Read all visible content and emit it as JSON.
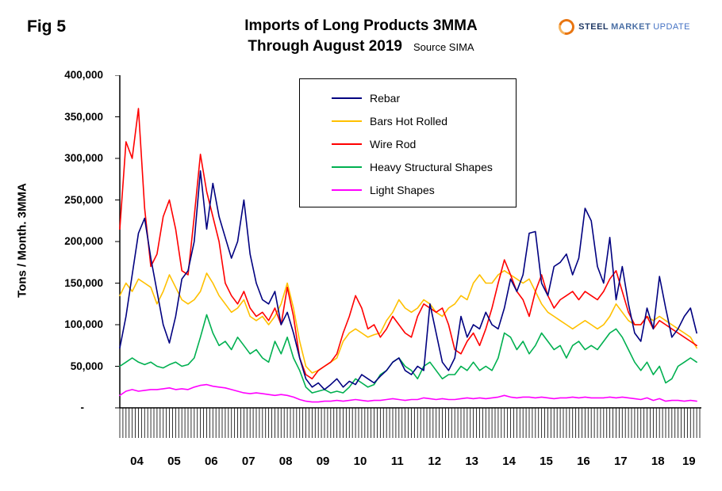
{
  "figure": {
    "label": "Fig 5"
  },
  "header": {
    "title_line1": "Imports of Long Products 3MMA",
    "title_line2": "Through August 2019",
    "source": "Source SIMA"
  },
  "logo": {
    "word1": "STEEL",
    "word2": "MARKET",
    "word3": "UPDATE",
    "icon": "globe-swoosh-icon",
    "accent": "#E87511",
    "navy": "#1F3864"
  },
  "y_axis": {
    "title": "Tons / Month. 3MMA",
    "tick_labels": [
      "400,000",
      "350,000",
      "300,000",
      "250,000",
      "200,000",
      "150,000",
      "100,000",
      "50,000",
      "-"
    ]
  },
  "x_axis": {
    "year_labels": [
      "04",
      "05",
      "06",
      "07",
      "08",
      "09",
      "10",
      "11",
      "12",
      "13",
      "14",
      "15",
      "16",
      "17",
      "18",
      "19"
    ]
  },
  "chart_data": {
    "type": "line",
    "title": "Imports of Long Products 3MMA Through August 2019",
    "subtitle": "Source SIMA",
    "xlabel": "",
    "ylabel": "Tons / Month. 3MMA",
    "ylim": [
      0,
      400000
    ],
    "y_tick_step": 50000,
    "grid": false,
    "legend_position": "top-center-inside",
    "x_start": "2004-01",
    "x_end": "2019-08",
    "x_month_step": 2,
    "x_note": "values estimated from plot at 2-month intervals, Jan 2004 - Jul/Aug 2019",
    "series": [
      {
        "name": "Rebar",
        "color": "#000080",
        "values": [
          72000,
          110000,
          160000,
          210000,
          228000,
          180000,
          140000,
          100000,
          78000,
          110000,
          155000,
          165000,
          200000,
          285000,
          215000,
          270000,
          230000,
          205000,
          180000,
          200000,
          250000,
          185000,
          150000,
          130000,
          125000,
          140000,
          100000,
          115000,
          90000,
          60000,
          35000,
          25000,
          30000,
          22000,
          28000,
          35000,
          25000,
          32000,
          28000,
          40000,
          35000,
          30000,
          38000,
          45000,
          55000,
          60000,
          45000,
          40000,
          50000,
          45000,
          125000,
          90000,
          55000,
          45000,
          60000,
          110000,
          85000,
          100000,
          95000,
          115000,
          100000,
          95000,
          120000,
          155000,
          140000,
          160000,
          210000,
          212000,
          150000,
          135000,
          170000,
          175000,
          185000,
          160000,
          180000,
          240000,
          225000,
          170000,
          150000,
          205000,
          130000,
          170000,
          125000,
          90000,
          80000,
          120000,
          95000,
          158000,
          120000,
          85000,
          95000,
          110000,
          120000,
          90000
        ]
      },
      {
        "name": "Bars Hot Rolled",
        "color": "#FFC000",
        "values": [
          135000,
          150000,
          140000,
          155000,
          150000,
          145000,
          125000,
          140000,
          160000,
          145000,
          130000,
          125000,
          130000,
          140000,
          162000,
          150000,
          135000,
          125000,
          115000,
          120000,
          130000,
          110000,
          105000,
          110000,
          100000,
          110000,
          125000,
          150000,
          120000,
          80000,
          50000,
          42000,
          45000,
          50000,
          55000,
          60000,
          80000,
          90000,
          95000,
          90000,
          85000,
          88000,
          90000,
          105000,
          115000,
          130000,
          120000,
          115000,
          120000,
          130000,
          125000,
          115000,
          110000,
          120000,
          125000,
          135000,
          130000,
          150000,
          160000,
          150000,
          150000,
          160000,
          165000,
          160000,
          155000,
          150000,
          155000,
          140000,
          125000,
          115000,
          110000,
          105000,
          100000,
          95000,
          100000,
          105000,
          100000,
          95000,
          100000,
          110000,
          125000,
          115000,
          105000,
          100000,
          100000,
          110000,
          105000,
          110000,
          105000,
          100000,
          95000,
          90000,
          85000,
          72000
        ]
      },
      {
        "name": "Wire Rod",
        "color": "#FF0000",
        "values": [
          215000,
          320000,
          300000,
          360000,
          240000,
          170000,
          185000,
          230000,
          250000,
          215000,
          165000,
          160000,
          230000,
          305000,
          260000,
          230000,
          200000,
          150000,
          135000,
          125000,
          140000,
          120000,
          110000,
          115000,
          105000,
          120000,
          100000,
          145000,
          110000,
          60000,
          40000,
          35000,
          45000,
          50000,
          55000,
          65000,
          90000,
          110000,
          135000,
          120000,
          95000,
          100000,
          85000,
          95000,
          110000,
          100000,
          90000,
          85000,
          110000,
          125000,
          120000,
          115000,
          120000,
          100000,
          70000,
          65000,
          80000,
          90000,
          75000,
          95000,
          120000,
          150000,
          178000,
          160000,
          140000,
          130000,
          110000,
          140000,
          160000,
          135000,
          120000,
          130000,
          135000,
          140000,
          130000,
          140000,
          135000,
          130000,
          140000,
          155000,
          165000,
          140000,
          115000,
          100000,
          100000,
          110000,
          95000,
          105000,
          100000,
          95000,
          90000,
          85000,
          80000,
          75000
        ]
      },
      {
        "name": "Heavy Structural Shapes",
        "color": "#00B050",
        "values": [
          50000,
          55000,
          60000,
          55000,
          52000,
          55000,
          50000,
          48000,
          52000,
          55000,
          50000,
          52000,
          60000,
          85000,
          112000,
          90000,
          75000,
          80000,
          70000,
          85000,
          75000,
          65000,
          70000,
          60000,
          55000,
          80000,
          65000,
          85000,
          60000,
          45000,
          25000,
          18000,
          20000,
          22000,
          18000,
          20000,
          18000,
          25000,
          35000,
          30000,
          25000,
          28000,
          40000,
          45000,
          55000,
          60000,
          50000,
          45000,
          35000,
          50000,
          55000,
          45000,
          35000,
          40000,
          40000,
          50000,
          45000,
          55000,
          45000,
          50000,
          45000,
          60000,
          90000,
          85000,
          70000,
          80000,
          65000,
          75000,
          90000,
          80000,
          70000,
          75000,
          60000,
          75000,
          80000,
          70000,
          75000,
          70000,
          80000,
          90000,
          95000,
          85000,
          70000,
          55000,
          45000,
          55000,
          40000,
          50000,
          30000,
          35000,
          50000,
          55000,
          60000,
          55000
        ]
      },
      {
        "name": "Light Shapes",
        "color": "#FF00FF",
        "values": [
          15000,
          20000,
          22000,
          20000,
          21000,
          22000,
          22000,
          23000,
          24000,
          22000,
          23000,
          22000,
          25000,
          27000,
          28000,
          26000,
          25000,
          24000,
          22000,
          20000,
          18000,
          17000,
          18000,
          17000,
          16000,
          15000,
          16000,
          15000,
          13000,
          10000,
          8000,
          7000,
          7000,
          8000,
          8000,
          9000,
          8000,
          9000,
          10000,
          9000,
          8000,
          9000,
          9000,
          10000,
          11000,
          10000,
          9000,
          10000,
          10000,
          12000,
          11000,
          10000,
          11000,
          10000,
          10000,
          11000,
          12000,
          11000,
          12000,
          11000,
          12000,
          13000,
          15000,
          13000,
          12000,
          13000,
          13000,
          12000,
          13000,
          12000,
          11000,
          12000,
          12000,
          13000,
          12000,
          13000,
          12000,
          12000,
          12000,
          13000,
          12000,
          13000,
          12000,
          11000,
          10000,
          12000,
          9000,
          11000,
          8000,
          9000,
          9000,
          8000,
          9000,
          8000
        ]
      }
    ]
  }
}
